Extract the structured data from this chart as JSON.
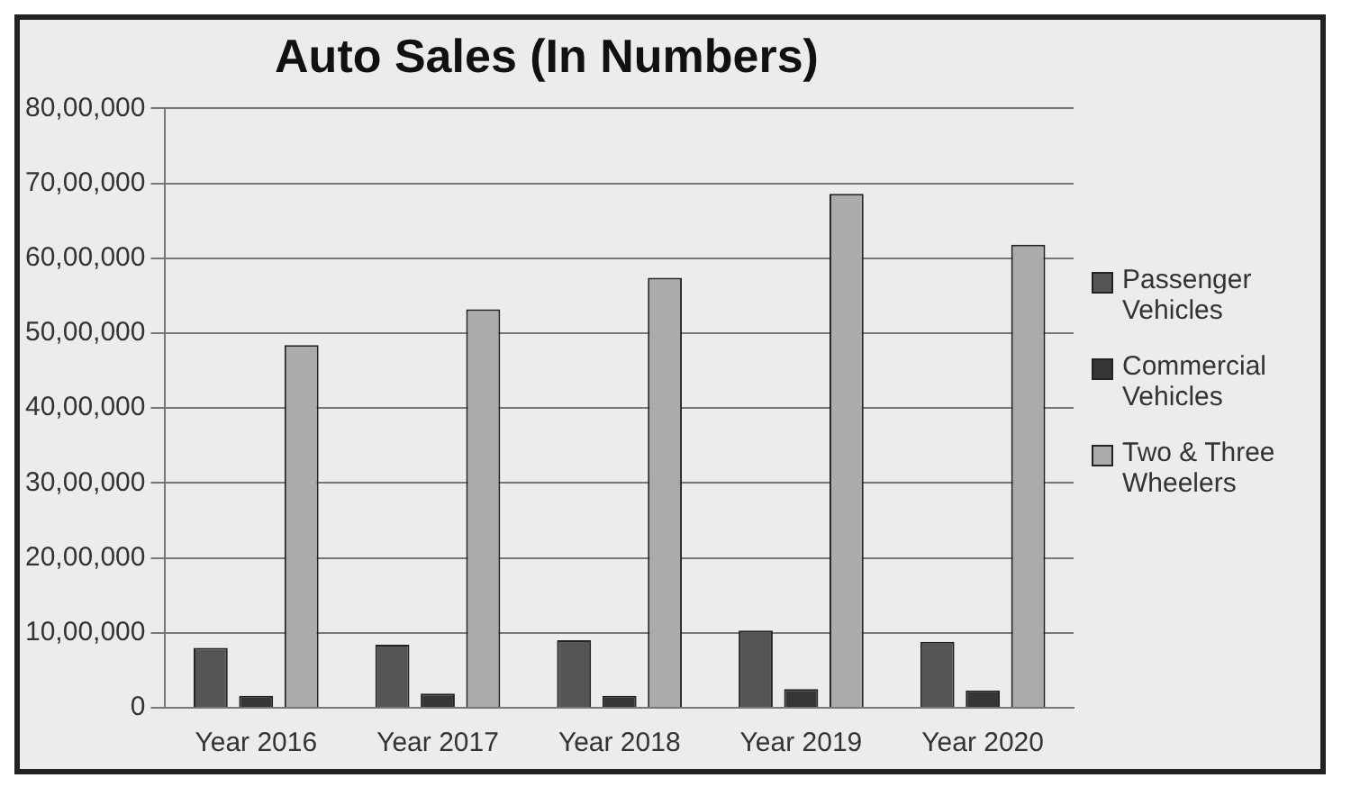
{
  "chart_data": {
    "type": "bar",
    "title": "Auto Sales (In Numbers)",
    "categories": [
      "Year 2016",
      "Year 2017",
      "Year 2018",
      "Year 2019",
      "Year 2020"
    ],
    "series": [
      {
        "name": "Passenger Vehicles",
        "color": "#555555",
        "values": [
          800000,
          840000,
          900000,
          1030000,
          880000
        ]
      },
      {
        "name": "Commercial Vehicles",
        "color": "#363636",
        "values": [
          160000,
          190000,
          160000,
          250000,
          230000
        ]
      },
      {
        "name": "Two & Three Wheelers",
        "color": "#ababab",
        "values": [
          4840000,
          5320000,
          5740000,
          6860000,
          6180000
        ]
      }
    ],
    "ylim": [
      0,
      8000000
    ],
    "yticks": [
      {
        "value": 0,
        "label": "0"
      },
      {
        "value": 1000000,
        "label": "10,00,000"
      },
      {
        "value": 2000000,
        "label": "20,00,000"
      },
      {
        "value": 3000000,
        "label": "30,00,000"
      },
      {
        "value": 4000000,
        "label": "40,00,000"
      },
      {
        "value": 5000000,
        "label": "50,00,000"
      },
      {
        "value": 6000000,
        "label": "60,00,000"
      },
      {
        "value": 7000000,
        "label": "70,00,000"
      },
      {
        "value": 8000000,
        "label": "80,00,000"
      }
    ],
    "grid": "y",
    "legend": "right"
  }
}
